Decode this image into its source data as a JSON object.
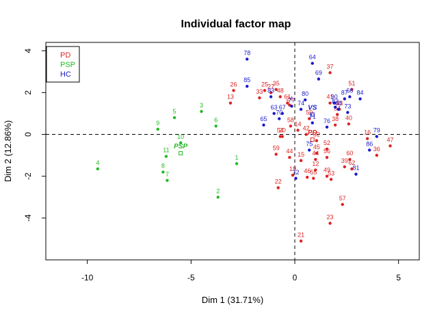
{
  "chart_data": {
    "type": "scatter",
    "title": "Individual factor map",
    "xlabel": "Dim 1 (31.71%)",
    "ylabel": "Dim 2 (12.86%)",
    "xlim": [
      -12,
      6
    ],
    "ylim": [
      -6,
      4.4
    ],
    "x_ticks": [
      -10,
      -5,
      0,
      5
    ],
    "y_ticks": [
      -4,
      -2,
      0,
      2,
      4
    ],
    "grid": false,
    "reference_lines": {
      "x": 0,
      "y": 0,
      "style": "dashed"
    },
    "legend": {
      "position": "top-left",
      "entries": [
        {
          "label": "PD",
          "color": "#dd2222"
        },
        {
          "label": "PSP",
          "color": "#22bb22"
        },
        {
          "label": "HC",
          "color": "#1a1acc"
        }
      ]
    },
    "series": [
      {
        "name": "PD",
        "color": "#dd2222",
        "points": [
          {
            "label": "13",
            "x": -3.1,
            "y": 1.5
          },
          {
            "label": "20",
            "x": -0.6,
            "y": -0.1
          },
          {
            "label": "21",
            "x": 0.3,
            "y": -5.1
          },
          {
            "label": "22",
            "x": -0.8,
            "y": -2.55
          },
          {
            "label": "23",
            "x": 1.7,
            "y": -4.25
          },
          {
            "label": "24",
            "x": -0.25,
            "y": 1.4
          },
          {
            "label": "25",
            "x": -1.45,
            "y": 2.1
          },
          {
            "label": "26",
            "x": -2.95,
            "y": 2.1
          },
          {
            "label": "27",
            "x": -1.15,
            "y": 2.0
          },
          {
            "label": "32",
            "x": 1.05,
            "y": -0.3
          },
          {
            "label": "33",
            "x": -1.7,
            "y": 1.75
          },
          {
            "label": "35",
            "x": -0.9,
            "y": 2.15
          },
          {
            "label": "36",
            "x": 3.95,
            "y": -1.0
          },
          {
            "label": "37",
            "x": 1.7,
            "y": 2.95
          },
          {
            "label": "38",
            "x": 1.95,
            "y": 0.45
          },
          {
            "label": "39",
            "x": 2.4,
            "y": -1.55
          },
          {
            "label": "40",
            "x": 2.6,
            "y": 0.5
          },
          {
            "label": "41",
            "x": 1.7,
            "y": 1.5
          },
          {
            "label": "43",
            "x": 2.15,
            "y": 1.2
          },
          {
            "label": "44",
            "x": 1.0,
            "y": -1.2
          },
          {
            "label": "45",
            "x": 1.05,
            "y": -0.9
          },
          {
            "label": "46",
            "x": 0.6,
            "y": -2.05
          },
          {
            "label": "47",
            "x": 4.6,
            "y": -0.55
          },
          {
            "label": "48",
            "x": -0.7,
            "y": 1.8
          },
          {
            "label": "49",
            "x": 1.55,
            "y": -2.0
          },
          {
            "label": "50",
            "x": 0.7,
            "y": 0.75
          },
          {
            "label": "51",
            "x": 2.75,
            "y": 2.15
          },
          {
            "label": "52",
            "x": 1.55,
            "y": -0.7
          },
          {
            "label": "53",
            "x": 1.75,
            "y": -2.15
          },
          {
            "label": "54",
            "x": -0.7,
            "y": -0.1
          },
          {
            "label": "55",
            "x": 0.9,
            "y": -2.1
          },
          {
            "label": "56",
            "x": 1.55,
            "y": -1.1
          },
          {
            "label": "57",
            "x": 2.3,
            "y": -3.35
          },
          {
            "label": "58",
            "x": -0.2,
            "y": 0.4
          },
          {
            "label": "59",
            "x": -0.9,
            "y": -0.95
          },
          {
            "label": "60",
            "x": 2.65,
            "y": -1.2
          },
          {
            "label": "61",
            "x": -0.35,
            "y": 1.5
          },
          {
            "label": "62",
            "x": 2.75,
            "y": -1.65
          },
          {
            "label": "16",
            "x": 3.5,
            "y": -0.2
          },
          {
            "label": "19",
            "x": -0.1,
            "y": -1.95
          },
          {
            "label": "12",
            "x": 1.0,
            "y": -1.7
          },
          {
            "label": "44",
            "x": -0.25,
            "y": -1.1
          },
          {
            "label": "15",
            "x": 0.3,
            "y": -1.25
          },
          {
            "label": "14",
            "x": 0.15,
            "y": 0.2
          },
          {
            "label": "34",
            "x": 2.05,
            "y": 0.95
          },
          {
            "label": "42",
            "x": 0.55,
            "y": 0.0
          }
        ]
      },
      {
        "name": "PSP",
        "color": "#22bb22",
        "points": [
          {
            "label": "1",
            "x": -2.8,
            "y": -1.4
          },
          {
            "label": "2",
            "x": -3.7,
            "y": -3.0
          },
          {
            "label": "3",
            "x": -4.5,
            "y": 1.1
          },
          {
            "label": "4",
            "x": -9.5,
            "y": -1.65
          },
          {
            "label": "5",
            "x": -5.8,
            "y": 0.8
          },
          {
            "label": "6",
            "x": -3.8,
            "y": 0.4
          },
          {
            "label": "7",
            "x": -6.15,
            "y": -2.2
          },
          {
            "label": "8",
            "x": -6.35,
            "y": -1.8
          },
          {
            "label": "9",
            "x": -6.6,
            "y": 0.25
          },
          {
            "label": "10",
            "x": -5.5,
            "y": -0.4
          },
          {
            "label": "11",
            "x": -6.2,
            "y": -1.05
          }
        ]
      },
      {
        "name": "HC",
        "color": "#1a1acc",
        "points": [
          {
            "label": "63",
            "x": -1.0,
            "y": 1.0
          },
          {
            "label": "64",
            "x": 0.85,
            "y": 3.4
          },
          {
            "label": "65",
            "x": -1.5,
            "y": 0.45
          },
          {
            "label": "66",
            "x": 2.65,
            "y": 1.8
          },
          {
            "label": "67",
            "x": -0.6,
            "y": 1.0
          },
          {
            "label": "68",
            "x": 2.1,
            "y": 1.2
          },
          {
            "label": "69",
            "x": 1.15,
            "y": 2.65
          },
          {
            "label": "70",
            "x": -0.75,
            "y": 0.75
          },
          {
            "label": "71",
            "x": 0.85,
            "y": 0.55
          },
          {
            "label": "72",
            "x": 0.05,
            "y": -2.1
          },
          {
            "label": "73",
            "x": 2.55,
            "y": 1.05
          },
          {
            "label": "74",
            "x": 0.3,
            "y": 1.2
          },
          {
            "label": "75",
            "x": 0.7,
            "y": -0.75
          },
          {
            "label": "76",
            "x": 1.55,
            "y": 0.35
          },
          {
            "label": "77",
            "x": -0.15,
            "y": 1.35
          },
          {
            "label": "78",
            "x": -2.3,
            "y": 3.6
          },
          {
            "label": "79",
            "x": 3.95,
            "y": -0.1
          },
          {
            "label": "80",
            "x": 0.5,
            "y": 1.65
          },
          {
            "label": "81",
            "x": 2.95,
            "y": -1.9
          },
          {
            "label": "82",
            "x": 1.95,
            "y": 1.3
          },
          {
            "label": "83",
            "x": -1.15,
            "y": 1.8
          },
          {
            "label": "84",
            "x": 3.15,
            "y": 1.7
          },
          {
            "label": "85",
            "x": -2.3,
            "y": 2.3
          },
          {
            "label": "86",
            "x": 3.6,
            "y": -0.75
          },
          {
            "label": "87",
            "x": 2.4,
            "y": 1.7
          },
          {
            "label": "90",
            "x": 1.9,
            "y": 1.5
          }
        ]
      }
    ],
    "centroids": [
      {
        "label": "PD",
        "x": 0.85,
        "y": -0.25,
        "color": "#dd2222"
      },
      {
        "label": "PSP",
        "x": -5.5,
        "y": -0.9,
        "color": "#22bb22"
      },
      {
        "label": "VS",
        "x": 0.85,
        "y": 0.95,
        "color": "#1a1acc"
      }
    ]
  }
}
